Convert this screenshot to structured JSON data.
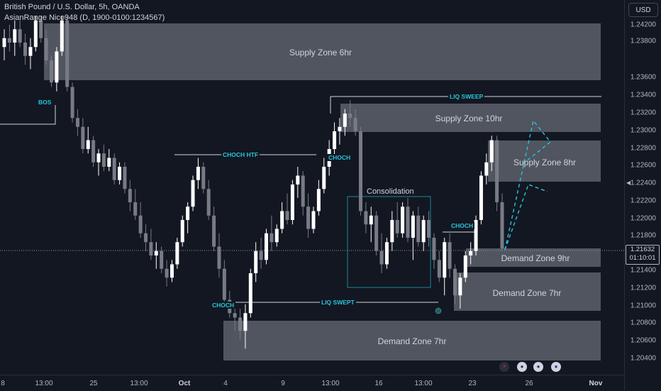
{
  "header": {
    "symbol_line": "British Pound / U.S. Dollar, 5h, OANDA",
    "indicator_line": "AsianRange Nico948 (D, 1900-0100:1234567)"
  },
  "currency_button": "USD",
  "last_price": {
    "price": "1.21632",
    "countdown": "01:10:01"
  },
  "price_axis": [
    "1.24200",
    "1.23800",
    "1.23600",
    "1.23400",
    "1.23200",
    "1.23000",
    "1.22800",
    "1.22600",
    "1.22400",
    "1.22200",
    "1.22000",
    "1.21800",
    "1.21400",
    "1.21200",
    "1.21000",
    "1.20800",
    "1.20600",
    "1.20400"
  ],
  "time_axis": [
    {
      "label": "8",
      "bold": false
    },
    {
      "label": "13:00",
      "bold": false
    },
    {
      "label": "25",
      "bold": false
    },
    {
      "label": "13:00",
      "bold": false
    },
    {
      "label": "Oct",
      "bold": true
    },
    {
      "label": "4",
      "bold": false
    },
    {
      "label": "9",
      "bold": false
    },
    {
      "label": "13:00",
      "bold": false
    },
    {
      "label": "16",
      "bold": false
    },
    {
      "label": "13:00",
      "bold": false
    },
    {
      "label": "23",
      "bold": false
    },
    {
      "label": "26",
      "bold": false
    },
    {
      "label": "Nov",
      "bold": true
    }
  ],
  "zones": [
    {
      "label": "Supply Zone 6hr"
    },
    {
      "label": "Supply Zone 10hr"
    },
    {
      "label": "Supply Zone 8hr"
    },
    {
      "label": "Demand Zone 9hr"
    },
    {
      "label": "Demand Zone 7hr"
    },
    {
      "label": "Demand Zone 7hr"
    }
  ],
  "annotations": {
    "bos": "BOS",
    "choch_htf": "CHOCH HTF",
    "choch_1": "CHOCH",
    "choch_2": "CHOCH",
    "choch_3": "CHOCH",
    "liq_sweep": "LIQ SWEEP",
    "liq_swept": "LIQ SWEPT",
    "consolidation": "Consolidation"
  },
  "colors": {
    "background": "#131722",
    "zone_fill": "#5d606b",
    "annotation": "#26c6da",
    "candle_up": "#ffffff",
    "candle_down": "#787b86"
  },
  "chart_data": {
    "type": "candlestick",
    "title": "British Pound / U.S. Dollar, 5h, OANDA",
    "ylim": [
      1.2035,
      1.2435
    ],
    "ohlc": [
      [
        1.239,
        1.241,
        1.2375,
        1.24
      ],
      [
        1.24,
        1.2415,
        1.2385,
        1.2395
      ],
      [
        1.2395,
        1.242,
        1.238,
        1.241
      ],
      [
        1.241,
        1.242,
        1.239,
        1.2395
      ],
      [
        1.2395,
        1.2405,
        1.237,
        1.238
      ],
      [
        1.238,
        1.24,
        1.2365,
        1.239
      ],
      [
        1.239,
        1.2425,
        1.2385,
        1.242
      ],
      [
        1.242,
        1.2425,
        1.2395,
        1.24
      ],
      [
        1.24,
        1.241,
        1.237,
        1.2375
      ],
      [
        1.2375,
        1.238,
        1.2345,
        1.235
      ],
      [
        1.235,
        1.239,
        1.234,
        1.2385
      ],
      [
        1.2385,
        1.2425,
        1.238,
        1.242
      ],
      [
        1.242,
        1.2425,
        1.234,
        1.2345
      ],
      [
        1.2345,
        1.235,
        1.2305,
        1.231
      ],
      [
        1.231,
        1.232,
        1.229,
        1.23
      ],
      [
        1.23,
        1.231,
        1.227,
        1.2275
      ],
      [
        1.2275,
        1.23,
        1.227,
        1.2285
      ],
      [
        1.2285,
        1.229,
        1.2255,
        1.226
      ],
      [
        1.226,
        1.2275,
        1.2245,
        1.227
      ],
      [
        1.227,
        1.228,
        1.225,
        1.2255
      ],
      [
        1.2255,
        1.2275,
        1.225,
        1.2265
      ],
      [
        1.2265,
        1.227,
        1.2235,
        1.224
      ],
      [
        1.224,
        1.226,
        1.2235,
        1.2255
      ],
      [
        1.2255,
        1.226,
        1.2225,
        1.223
      ],
      [
        1.223,
        1.224,
        1.2205,
        1.2215
      ],
      [
        1.2215,
        1.223,
        1.2195,
        1.22
      ],
      [
        1.22,
        1.2215,
        1.2175,
        1.218
      ],
      [
        1.218,
        1.219,
        1.216,
        1.217
      ],
      [
        1.217,
        1.2185,
        1.215,
        1.2155
      ],
      [
        1.2155,
        1.217,
        1.214,
        1.216
      ],
      [
        1.216,
        1.2165,
        1.2135,
        1.214
      ],
      [
        1.214,
        1.215,
        1.212,
        1.213
      ],
      [
        1.213,
        1.215,
        1.2125,
        1.2145
      ],
      [
        1.2145,
        1.2175,
        1.214,
        1.217
      ],
      [
        1.217,
        1.22,
        1.2165,
        1.2195
      ],
      [
        1.2195,
        1.2215,
        1.218,
        1.221
      ],
      [
        1.221,
        1.2245,
        1.2205,
        1.224
      ],
      [
        1.224,
        1.2265,
        1.223,
        1.2255
      ],
      [
        1.2255,
        1.226,
        1.2225,
        1.223
      ],
      [
        1.223,
        1.224,
        1.2195,
        1.22
      ],
      [
        1.22,
        1.221,
        1.216,
        1.2165
      ],
      [
        1.2165,
        1.218,
        1.213,
        1.214
      ],
      [
        1.214,
        1.215,
        1.21,
        1.2105
      ],
      [
        1.2105,
        1.2115,
        1.2085,
        1.209
      ],
      [
        1.209,
        1.21,
        1.207,
        1.2085
      ],
      [
        1.2085,
        1.2095,
        1.206,
        1.207
      ],
      [
        1.207,
        1.21,
        1.205,
        1.209
      ],
      [
        1.209,
        1.214,
        1.2085,
        1.2135
      ],
      [
        1.2135,
        1.217,
        1.2125,
        1.216
      ],
      [
        1.216,
        1.2175,
        1.214,
        1.215
      ],
      [
        1.215,
        1.2185,
        1.2145,
        1.218
      ],
      [
        1.218,
        1.22,
        1.216,
        1.217
      ],
      [
        1.217,
        1.219,
        1.2165,
        1.2185
      ],
      [
        1.2185,
        1.2215,
        1.218,
        1.2205
      ],
      [
        1.2205,
        1.2225,
        1.219,
        1.2195
      ],
      [
        1.2195,
        1.224,
        1.219,
        1.2235
      ],
      [
        1.2235,
        1.2255,
        1.222,
        1.2245
      ],
      [
        1.2245,
        1.225,
        1.22,
        1.221
      ],
      [
        1.221,
        1.2225,
        1.2175,
        1.2185
      ],
      [
        1.2185,
        1.221,
        1.218,
        1.2205
      ],
      [
        1.2205,
        1.224,
        1.22,
        1.223
      ],
      [
        1.223,
        1.2265,
        1.2225,
        1.2255
      ],
      [
        1.2255,
        1.2285,
        1.2245,
        1.2275
      ],
      [
        1.2275,
        1.2305,
        1.2265,
        1.2295
      ],
      [
        1.2295,
        1.231,
        1.228,
        1.23
      ],
      [
        1.23,
        1.232,
        1.229,
        1.2315
      ],
      [
        1.2315,
        1.233,
        1.23,
        1.231
      ],
      [
        1.231,
        1.232,
        1.229,
        1.2295
      ],
      [
        1.2295,
        1.23,
        1.22,
        1.2205
      ],
      [
        1.2205,
        1.2215,
        1.218,
        1.219
      ],
      [
        1.219,
        1.221,
        1.217,
        1.22
      ],
      [
        1.22,
        1.2205,
        1.2155,
        1.216
      ],
      [
        1.216,
        1.218,
        1.2135,
        1.2145
      ],
      [
        1.2145,
        1.2175,
        1.214,
        1.217
      ],
      [
        1.217,
        1.2205,
        1.216,
        1.2195
      ],
      [
        1.2195,
        1.2215,
        1.2175,
        1.218
      ],
      [
        1.218,
        1.2215,
        1.2175,
        1.221
      ],
      [
        1.221,
        1.222,
        1.217,
        1.2175
      ],
      [
        1.2175,
        1.2205,
        1.215,
        1.22
      ],
      [
        1.22,
        1.221,
        1.2165,
        1.217
      ],
      [
        1.217,
        1.22,
        1.216,
        1.2195
      ],
      [
        1.2195,
        1.2205,
        1.2165,
        1.2175
      ],
      [
        1.2175,
        1.218,
        1.214,
        1.215
      ],
      [
        1.215,
        1.216,
        1.2125,
        1.213
      ],
      [
        1.213,
        1.2175,
        1.211,
        1.217
      ],
      [
        1.217,
        1.218,
        1.213,
        1.214
      ],
      [
        1.214,
        1.2145,
        1.21,
        1.211
      ],
      [
        1.211,
        1.2135,
        1.2095,
        1.213
      ],
      [
        1.213,
        1.216,
        1.2125,
        1.2155
      ],
      [
        1.2155,
        1.217,
        1.2145,
        1.216
      ],
      [
        1.216,
        1.22,
        1.2155,
        1.2195
      ],
      [
        1.2195,
        1.225,
        1.219,
        1.2245
      ],
      [
        1.2245,
        1.227,
        1.2235,
        1.226
      ],
      [
        1.226,
        1.229,
        1.225,
        1.2285
      ],
      [
        1.2285,
        1.229,
        1.2205,
        1.2215
      ],
      [
        1.2215,
        1.2225,
        1.216,
        1.2163
      ]
    ]
  }
}
